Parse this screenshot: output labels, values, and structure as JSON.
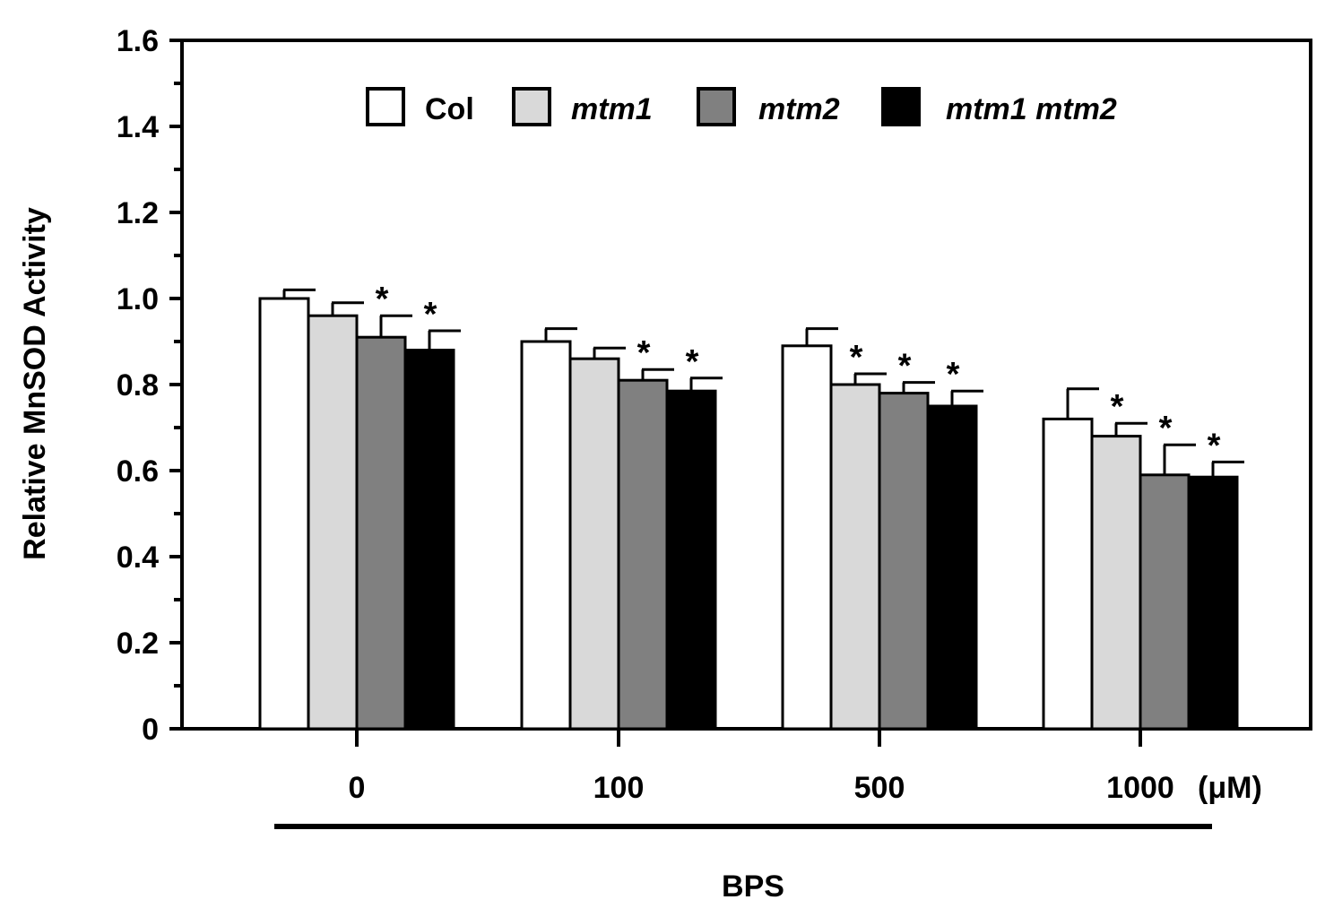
{
  "chart_data": {
    "type": "bar",
    "title": "",
    "ylabel": "Relative MnSOD Activity",
    "xlabel": "BPS",
    "x_unit": "(μM)",
    "ylim": [
      0,
      1.6
    ],
    "yticks": [
      0,
      0.2,
      0.4,
      0.6,
      0.8,
      1.0,
      1.2,
      1.4,
      1.6
    ],
    "ytick_labels": [
      "0",
      "0.2",
      "0.4",
      "0.6",
      "0.8",
      "1.0",
      "1.2",
      "1.4",
      "1.6"
    ],
    "categories": [
      "0",
      "100",
      "500",
      "1000"
    ],
    "legend_position": "top",
    "series": [
      {
        "name": "Col",
        "italic": false,
        "color": "#ffffff",
        "values": [
          1.0,
          0.9,
          0.89,
          0.72
        ],
        "errors": [
          0.02,
          0.03,
          0.04,
          0.07
        ],
        "significant": [
          false,
          false,
          false,
          false
        ]
      },
      {
        "name": "mtm1",
        "italic": true,
        "color": "#d9d9d9",
        "values": [
          0.96,
          0.86,
          0.8,
          0.68
        ],
        "errors": [
          0.03,
          0.025,
          0.025,
          0.03
        ],
        "significant": [
          false,
          false,
          true,
          true
        ]
      },
      {
        "name": "mtm2",
        "italic": true,
        "color": "#808080",
        "values": [
          0.91,
          0.81,
          0.78,
          0.59
        ],
        "errors": [
          0.05,
          0.025,
          0.025,
          0.07
        ],
        "significant": [
          true,
          true,
          true,
          true
        ]
      },
      {
        "name": "mtm1 mtm2",
        "italic": true,
        "color": "#000000",
        "values": [
          0.88,
          0.785,
          0.75,
          0.585
        ],
        "errors": [
          0.045,
          0.03,
          0.035,
          0.035
        ],
        "significant": [
          true,
          true,
          true,
          true
        ]
      }
    ],
    "significance_marker": "*"
  }
}
